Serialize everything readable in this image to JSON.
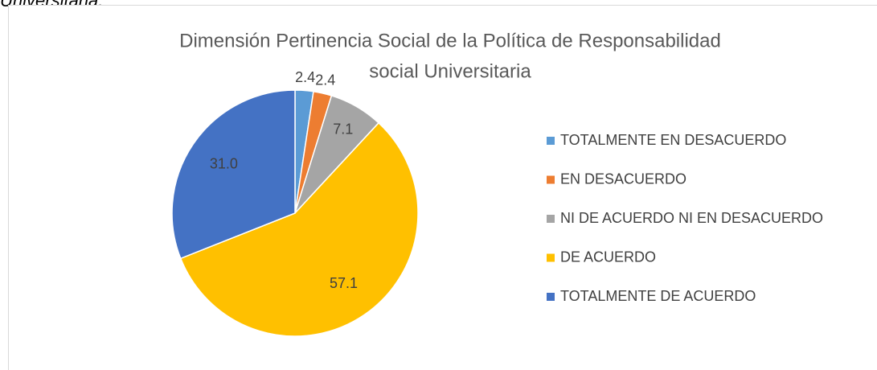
{
  "caption": "Universitaria.",
  "chart_data": {
    "type": "pie",
    "title": [
      "Dimensión Pertinencia Social de la Política de Responsabilidad",
      "social Universitaria"
    ],
    "categories": [
      "TOTALMENTE EN DESACUERDO",
      "EN DESACUERDO",
      "NI DE ACUERDO NI EN DESACUERDO",
      "DE ACUERDO",
      "TOTALMENTE DE ACUERDO"
    ],
    "values": [
      2.4,
      2.4,
      7.1,
      57.1,
      31
    ],
    "value_labels": [
      "2.4",
      "2.4",
      "7.1",
      "57.1",
      "31.0"
    ],
    "colors": [
      "#5b9bd5",
      "#ed7d31",
      "#a5a5a5",
      "#ffc000",
      "#4472c4"
    ],
    "legend": "right"
  }
}
